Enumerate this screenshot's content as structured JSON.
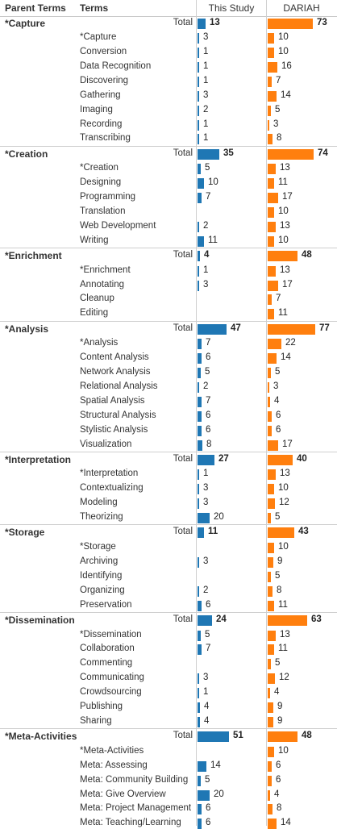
{
  "header": {
    "parent_terms": "Parent Terms",
    "terms": "Terms",
    "this_study": "This Study",
    "dariah": "DARIAH"
  },
  "colors": {
    "this_study": "#1f77b4",
    "dariah": "#ff7f0e",
    "divider": "#cfcfcf"
  },
  "chart_data": {
    "type": "bar",
    "orientation": "horizontal",
    "series_names": [
      "This Study",
      "DARIAH"
    ],
    "total_label": "Total",
    "groups": [
      {
        "parent": "*Capture",
        "totals": [
          13,
          73
        ],
        "terms": [
          {
            "term": "*Capture",
            "values": [
              3,
              10
            ]
          },
          {
            "term": "Conversion",
            "values": [
              1,
              10
            ]
          },
          {
            "term": "Data Recognition",
            "values": [
              1,
              16
            ]
          },
          {
            "term": "Discovering",
            "values": [
              1,
              7
            ]
          },
          {
            "term": "Gathering",
            "values": [
              3,
              14
            ]
          },
          {
            "term": "Imaging",
            "values": [
              2,
              5
            ]
          },
          {
            "term": "Recording",
            "values": [
              1,
              3
            ]
          },
          {
            "term": "Transcribing",
            "values": [
              1,
              8
            ]
          }
        ]
      },
      {
        "parent": "*Creation",
        "totals": [
          35,
          74
        ],
        "terms": [
          {
            "term": "*Creation",
            "values": [
              5,
              13
            ]
          },
          {
            "term": "Designing",
            "values": [
              10,
              11
            ]
          },
          {
            "term": "Programming",
            "values": [
              7,
              17
            ]
          },
          {
            "term": "Translation",
            "values": [
              null,
              10
            ]
          },
          {
            "term": "Web Development",
            "values": [
              2,
              13
            ]
          },
          {
            "term": "Writing",
            "values": [
              11,
              10
            ]
          }
        ]
      },
      {
        "parent": "*Enrichment",
        "totals": [
          4,
          48
        ],
        "terms": [
          {
            "term": "*Enrichment",
            "values": [
              1,
              13
            ]
          },
          {
            "term": "Annotating",
            "values": [
              3,
              17
            ]
          },
          {
            "term": "Cleanup",
            "values": [
              null,
              7
            ]
          },
          {
            "term": "Editing",
            "values": [
              null,
              11
            ]
          }
        ]
      },
      {
        "parent": "*Analysis",
        "totals": [
          47,
          77
        ],
        "terms": [
          {
            "term": "*Analysis",
            "values": [
              7,
              22
            ]
          },
          {
            "term": "Content Analysis",
            "values": [
              6,
              14
            ]
          },
          {
            "term": "Network Analysis",
            "values": [
              5,
              5
            ]
          },
          {
            "term": "Relational Analysis",
            "values": [
              2,
              3
            ]
          },
          {
            "term": "Spatial Analysis",
            "values": [
              7,
              4
            ]
          },
          {
            "term": "Structural Analysis",
            "values": [
              6,
              6
            ]
          },
          {
            "term": "Stylistic Analysis",
            "values": [
              6,
              6
            ]
          },
          {
            "term": "Visualization",
            "values": [
              8,
              17
            ]
          }
        ]
      },
      {
        "parent": "*Interpretation",
        "totals": [
          27,
          40
        ],
        "terms": [
          {
            "term": "*Interpretation",
            "values": [
              1,
              13
            ]
          },
          {
            "term": "Contextualizing",
            "values": [
              3,
              10
            ]
          },
          {
            "term": "Modeling",
            "values": [
              3,
              12
            ]
          },
          {
            "term": "Theorizing",
            "values": [
              20,
              5
            ]
          }
        ]
      },
      {
        "parent": "*Storage",
        "totals": [
          11,
          43
        ],
        "terms": [
          {
            "term": "*Storage",
            "values": [
              null,
              10
            ]
          },
          {
            "term": "Archiving",
            "values": [
              3,
              9
            ]
          },
          {
            "term": "Identifying",
            "values": [
              null,
              5
            ]
          },
          {
            "term": "Organizing",
            "values": [
              2,
              8
            ]
          },
          {
            "term": "Preservation",
            "values": [
              6,
              11
            ]
          }
        ]
      },
      {
        "parent": "*Dissemination",
        "totals": [
          24,
          63
        ],
        "terms": [
          {
            "term": "*Dissemination",
            "values": [
              5,
              13
            ]
          },
          {
            "term": "Collaboration",
            "values": [
              7,
              11
            ]
          },
          {
            "term": "Commenting",
            "values": [
              null,
              5
            ]
          },
          {
            "term": "Communicating",
            "values": [
              3,
              12
            ]
          },
          {
            "term": "Crowdsourcing",
            "values": [
              1,
              4
            ]
          },
          {
            "term": "Publishing",
            "values": [
              4,
              9
            ]
          },
          {
            "term": "Sharing",
            "values": [
              4,
              9
            ]
          }
        ]
      },
      {
        "parent": "*Meta-Activities",
        "totals": [
          51,
          48
        ],
        "terms": [
          {
            "term": "*Meta-Activities",
            "values": [
              null,
              10
            ]
          },
          {
            "term": "Meta: Assessing",
            "values": [
              14,
              6
            ]
          },
          {
            "term": "Meta: Community Building",
            "values": [
              5,
              6
            ]
          },
          {
            "term": "Meta: Give Overview",
            "values": [
              20,
              4
            ]
          },
          {
            "term": "Meta: Project Management",
            "values": [
              6,
              8
            ]
          },
          {
            "term": "Meta: Teaching/Learning",
            "values": [
              6,
              14
            ]
          }
        ]
      }
    ]
  }
}
